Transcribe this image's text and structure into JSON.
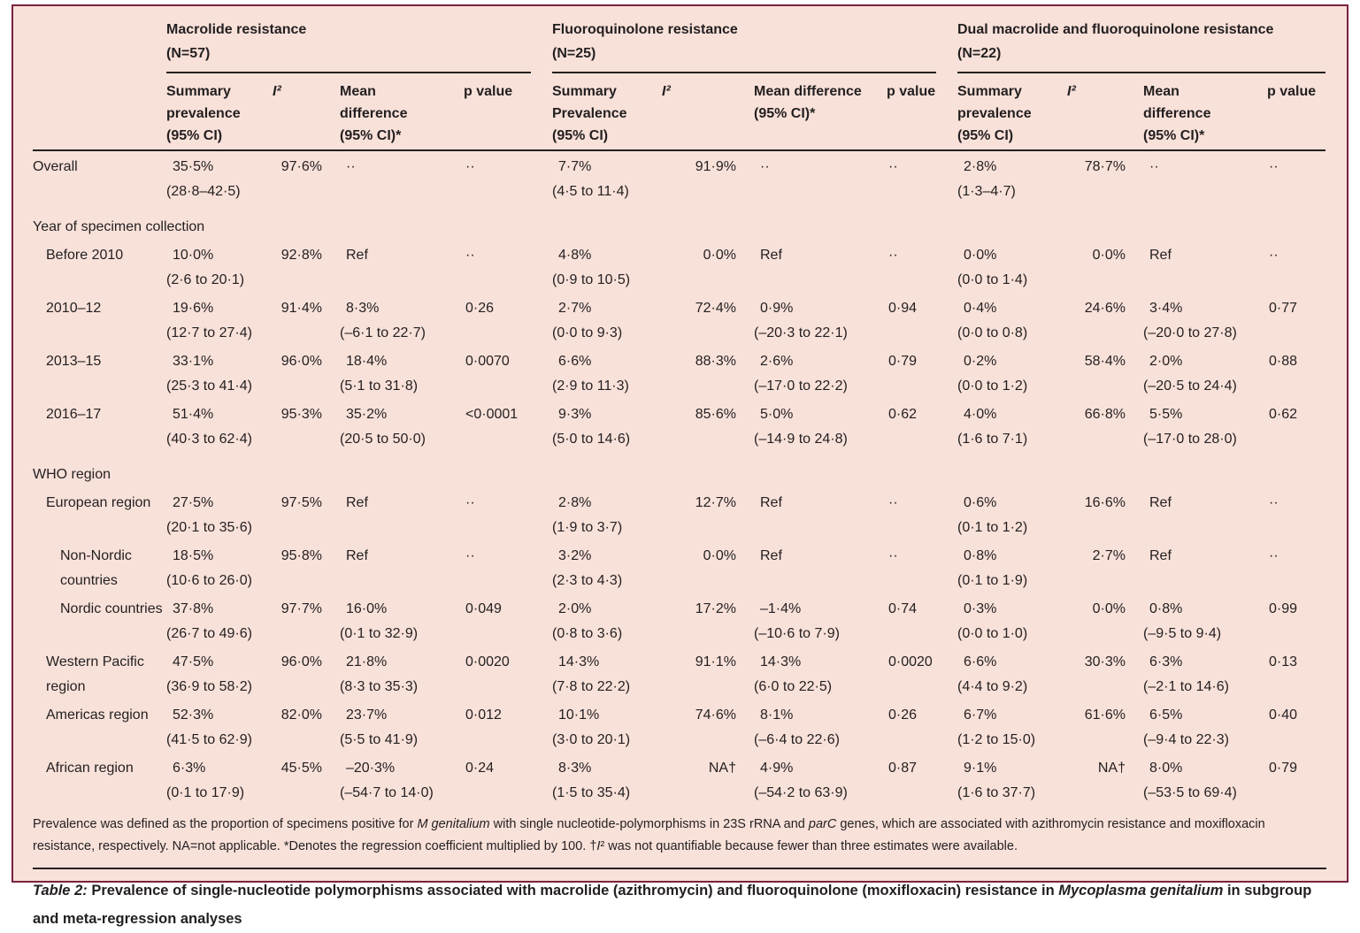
{
  "colors": {
    "background": "#f8e1d9",
    "border": "#7b2240",
    "rule": "#231f20",
    "text": "#231f20"
  },
  "table": {
    "groups": [
      {
        "title": "Macrolide resistance\n(N=57)",
        "cols": [
          {
            "label": "Summary\nprevalence\n(95% CI)"
          },
          {
            "label": "I²",
            "italic": true
          },
          {
            "label": "Mean\ndifference\n(95% CI)*"
          },
          {
            "label": "p value"
          }
        ]
      },
      {
        "title": "Fluoroquinolone resistance\n(N=25)",
        "cols": [
          {
            "label": "Summary\nPrevalence\n(95% CI)"
          },
          {
            "label": "I²",
            "italic": true
          },
          {
            "label": "Mean difference\n(95% CI)*"
          },
          {
            "label": "p value"
          }
        ]
      },
      {
        "title": "Dual macrolide and fluoroquinolone resistance\n(N=22)",
        "cols": [
          {
            "label": "Summary\nprevalence\n(95% CI)"
          },
          {
            "label": "I²",
            "italic": true
          },
          {
            "label": "Mean\ndifference\n(95% CI)*"
          },
          {
            "label": "p value"
          }
        ]
      }
    ],
    "rows": [
      {
        "type": "data",
        "label": "Overall",
        "indent": 0,
        "cells": [
          {
            "v": "35·5%",
            "ci": "(28·8–42·5)"
          },
          {
            "v": "97·6%"
          },
          {
            "v": "··"
          },
          {
            "v": "··"
          },
          {
            "v": "7·7%",
            "ci": "(4·5 to 11·4)"
          },
          {
            "v": "91·9%"
          },
          {
            "v": "··"
          },
          {
            "v": "··"
          },
          {
            "v": "2·8%",
            "ci": "(1·3–4·7)"
          },
          {
            "v": "78·7%"
          },
          {
            "v": "··"
          },
          {
            "v": "··"
          }
        ]
      },
      {
        "type": "section",
        "label": "Year of specimen collection"
      },
      {
        "type": "data",
        "label": "Before 2010",
        "indent": 1,
        "cells": [
          {
            "v": "10·0%",
            "ci": "(2·6 to 20·1)"
          },
          {
            "v": "92·8%"
          },
          {
            "v": "Ref"
          },
          {
            "v": "··"
          },
          {
            "v": "4·8%",
            "ci": "(0·9 to 10·5)"
          },
          {
            "v": "0·0%"
          },
          {
            "v": "Ref"
          },
          {
            "v": "··"
          },
          {
            "v": "0·0%",
            "ci": "(0·0 to 1·4)"
          },
          {
            "v": "0·0%"
          },
          {
            "v": "Ref"
          },
          {
            "v": "··"
          }
        ]
      },
      {
        "type": "data",
        "label": "2010–12",
        "indent": 1,
        "cells": [
          {
            "v": "19·6%",
            "ci": "(12·7 to 27·4)"
          },
          {
            "v": "91·4%"
          },
          {
            "v": "8·3%",
            "ci": "(–6·1 to 22·7)"
          },
          {
            "v": "0·26"
          },
          {
            "v": "2·7%",
            "ci": "(0·0 to 9·3)"
          },
          {
            "v": "72·4%"
          },
          {
            "v": "0·9%",
            "ci": "(–20·3 to 22·1)"
          },
          {
            "v": "0·94"
          },
          {
            "v": "0·4%",
            "ci": "(0·0 to 0·8)"
          },
          {
            "v": "24·6%"
          },
          {
            "v": "3·4%",
            "ci": "(–20·0 to 27·8)"
          },
          {
            "v": "0·77"
          }
        ]
      },
      {
        "type": "data",
        "label": "2013–15",
        "indent": 1,
        "cells": [
          {
            "v": "33·1%",
            "ci": "(25·3 to 41·4)"
          },
          {
            "v": "96·0%"
          },
          {
            "v": "18·4%",
            "ci": "(5·1 to 31·8)"
          },
          {
            "v": "0·0070"
          },
          {
            "v": "6·6%",
            "ci": "(2·9 to 11·3)"
          },
          {
            "v": "88·3%"
          },
          {
            "v": "2·6%",
            "ci": "(–17·0 to 22·2)"
          },
          {
            "v": "0·79"
          },
          {
            "v": "0·2%",
            "ci": "(0·0 to 1·2)"
          },
          {
            "v": "58·4%"
          },
          {
            "v": "2·0%",
            "ci": "(–20·5 to 24·4)"
          },
          {
            "v": "0·88"
          }
        ]
      },
      {
        "type": "data",
        "label": "2016–17",
        "indent": 1,
        "cells": [
          {
            "v": "51·4%",
            "ci": "(40·3 to 62·4)"
          },
          {
            "v": "95·3%"
          },
          {
            "v": "35·2%",
            "ci": "(20·5 to 50·0)"
          },
          {
            "v": "<0·0001"
          },
          {
            "v": "9·3%",
            "ci": "(5·0 to 14·6)"
          },
          {
            "v": "85·6%"
          },
          {
            "v": "5·0%",
            "ci": "(–14·9 to 24·8)"
          },
          {
            "v": "0·62"
          },
          {
            "v": "4·0%",
            "ci": "(1·6 to 7·1)"
          },
          {
            "v": "66·8%"
          },
          {
            "v": "5·5%",
            "ci": "(–17·0 to 28·0)"
          },
          {
            "v": "0·62"
          }
        ]
      },
      {
        "type": "section",
        "label": "WHO region"
      },
      {
        "type": "data",
        "label": "European region",
        "indent": 1,
        "cells": [
          {
            "v": "27·5%",
            "ci": "(20·1 to 35·6)"
          },
          {
            "v": "97·5%"
          },
          {
            "v": "Ref"
          },
          {
            "v": "··"
          },
          {
            "v": "2·8%",
            "ci": "(1·9 to 3·7)"
          },
          {
            "v": "12·7%"
          },
          {
            "v": "Ref"
          },
          {
            "v": "··"
          },
          {
            "v": "0·6%",
            "ci": "(0·1 to 1·2)"
          },
          {
            "v": "16·6%"
          },
          {
            "v": "Ref"
          },
          {
            "v": "··"
          }
        ]
      },
      {
        "type": "data",
        "label": "Non-Nordic countries",
        "indent": 2,
        "cells": [
          {
            "v": "18·5%",
            "ci": "(10·6 to 26·0)"
          },
          {
            "v": "95·8%"
          },
          {
            "v": "Ref"
          },
          {
            "v": "··"
          },
          {
            "v": "3·2%",
            "ci": "(2·3 to 4·3)"
          },
          {
            "v": "0·0%"
          },
          {
            "v": "Ref"
          },
          {
            "v": "··"
          },
          {
            "v": "0·8%",
            "ci": "(0·1 to 1·9)"
          },
          {
            "v": "2·7%"
          },
          {
            "v": "Ref"
          },
          {
            "v": "··"
          }
        ]
      },
      {
        "type": "data",
        "label": "Nordic countries",
        "indent": 2,
        "cells": [
          {
            "v": "37·8%",
            "ci": "(26·7 to 49·6)"
          },
          {
            "v": "97·7%"
          },
          {
            "v": "16·0%",
            "ci": "(0·1 to 32·9)"
          },
          {
            "v": "0·049"
          },
          {
            "v": "2·0%",
            "ci": "(0·8 to 3·6)"
          },
          {
            "v": "17·2%"
          },
          {
            "v": "–1·4%",
            "ci": "(–10·6 to 7·9)"
          },
          {
            "v": "0·74"
          },
          {
            "v": "0·3%",
            "ci": "(0·0 to 1·0)"
          },
          {
            "v": "0·0%"
          },
          {
            "v": "0·8%",
            "ci": "(–9·5 to 9·4)"
          },
          {
            "v": "0·99"
          }
        ]
      },
      {
        "type": "data",
        "label": "Western Pacific region",
        "indent": 1,
        "cells": [
          {
            "v": "47·5%",
            "ci": "(36·9 to 58·2)"
          },
          {
            "v": "96·0%"
          },
          {
            "v": "21·8%",
            "ci": "(8·3 to 35·3)"
          },
          {
            "v": "0·0020"
          },
          {
            "v": "14·3%",
            "ci": "(7·8 to 22·2)"
          },
          {
            "v": "91·1%"
          },
          {
            "v": "14·3%",
            "ci": "(6·0 to 22·5)"
          },
          {
            "v": "0·0020"
          },
          {
            "v": "6·6%",
            "ci": "(4·4 to 9·2)"
          },
          {
            "v": "30·3%"
          },
          {
            "v": "6·3%",
            "ci": "(–2·1 to 14·6)"
          },
          {
            "v": "0·13"
          }
        ]
      },
      {
        "type": "data",
        "label": "Americas region",
        "indent": 1,
        "cells": [
          {
            "v": "52·3%",
            "ci": "(41·5 to 62·9)"
          },
          {
            "v": "82·0%"
          },
          {
            "v": "23·7%",
            "ci": "(5·5 to 41·9)"
          },
          {
            "v": "0·012"
          },
          {
            "v": "10·1%",
            "ci": "(3·0 to 20·1)"
          },
          {
            "v": "74·6%"
          },
          {
            "v": "8·1%",
            "ci": "(–6·4 to 22·6)"
          },
          {
            "v": "0·26"
          },
          {
            "v": "6·7%",
            "ci": "(1·2 to 15·0)"
          },
          {
            "v": "61·6%"
          },
          {
            "v": "6·5%",
            "ci": "(–9·4 to 22·3)"
          },
          {
            "v": "0·40"
          }
        ]
      },
      {
        "type": "data",
        "label": "African region",
        "indent": 1,
        "cells": [
          {
            "v": "6·3%",
            "ci": "(0·1 to 17·9)"
          },
          {
            "v": "45·5%"
          },
          {
            "v": "–20·3%",
            "ci": "(–54·7 to 14·0)"
          },
          {
            "v": "0·24"
          },
          {
            "v": "8·3%",
            "ci": "(1·5 to 35·4)"
          },
          {
            "v": "NA†"
          },
          {
            "v": "4·9%",
            "ci": "(–54·2 to 63·9)"
          },
          {
            "v": "0·87"
          },
          {
            "v": "9·1%",
            "ci": "(1·6 to 37·7)"
          },
          {
            "v": "NA†"
          },
          {
            "v": "8·0%",
            "ci": "(–53·5 to 69·4)"
          },
          {
            "v": "0·79"
          }
        ]
      }
    ]
  },
  "footnote": {
    "segments": [
      {
        "t": "Prevalence was defined as the proportion of specimens positive for "
      },
      {
        "t": "M genitalium",
        "s": "i"
      },
      {
        "t": " with single nucleotide-polymorphisms in 23S rRNA and "
      },
      {
        "t": "parC",
        "s": "i"
      },
      {
        "t": " genes, which are associated with azithromycin resistance and moxifloxacin resistance, respectively. NA=not applicable. *Denotes the regression coefficient multiplied by 100. †"
      },
      {
        "t": "I",
        "s": "i"
      },
      {
        "t": "² was not quantifiable because fewer than three estimates were available."
      }
    ]
  },
  "caption": {
    "segments": [
      {
        "t": "Table 2:",
        "s": "bi"
      },
      {
        "t": " Prevalence of single-nucleotide polymorphisms associated with macrolide (azithromycin) and fluoroquinolone (moxifloxacin) resistance in ",
        "s": "b"
      },
      {
        "t": "Mycoplasma genitalium",
        "s": "bi"
      },
      {
        "t": " in subgroup and meta-regression analyses",
        "s": "b"
      }
    ]
  }
}
